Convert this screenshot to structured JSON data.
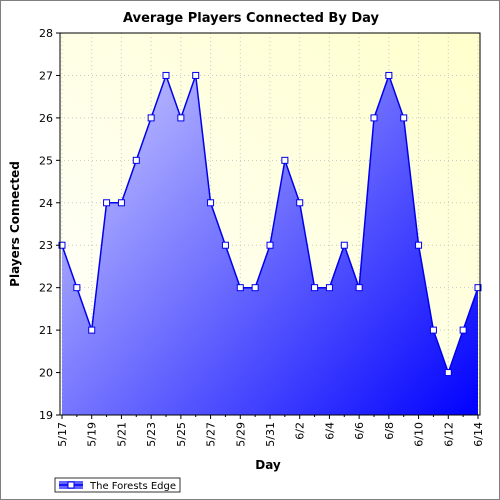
{
  "colors": {
    "plot_bg_top_right": "#ffffcc",
    "plot_bg_bottom_left": "#ffffff",
    "area_light": "#d8d8ff",
    "area_dark": "#0000ff",
    "line": "#0000ee",
    "grid": "#c8c8c8"
  },
  "chart_data": {
    "type": "area",
    "title": "Average Players Connected By Day",
    "xlabel": "Day",
    "ylabel": "Players Connected",
    "ylim": [
      19,
      28
    ],
    "yticks": [
      19,
      20,
      21,
      22,
      23,
      24,
      25,
      26,
      27,
      28
    ],
    "grid": true,
    "legend_position": "bottom-left",
    "categories": [
      "5/17",
      "5/18",
      "5/19",
      "5/20",
      "5/21",
      "5/22",
      "5/23",
      "5/24",
      "5/25",
      "5/26",
      "5/27",
      "5/28",
      "5/29",
      "5/30",
      "5/31",
      "6/1",
      "6/2",
      "6/3",
      "6/4",
      "6/5",
      "6/6",
      "6/7",
      "6/8",
      "6/9",
      "6/10",
      "6/11",
      "6/12",
      "6/13",
      "6/14"
    ],
    "xtick_labels": [
      "5/17",
      "5/19",
      "5/21",
      "5/23",
      "5/25",
      "5/27",
      "5/29",
      "5/31",
      "6/2",
      "6/4",
      "6/6",
      "6/8",
      "6/10",
      "6/12",
      "6/14"
    ],
    "series": [
      {
        "name": "The Forests Edge",
        "values": [
          23,
          22,
          21,
          24,
          24,
          25,
          26,
          27,
          26,
          27,
          24,
          23,
          22,
          22,
          23,
          25,
          24,
          22,
          22,
          23,
          22,
          26,
          27,
          26,
          23,
          21,
          20,
          21,
          22
        ]
      }
    ]
  }
}
